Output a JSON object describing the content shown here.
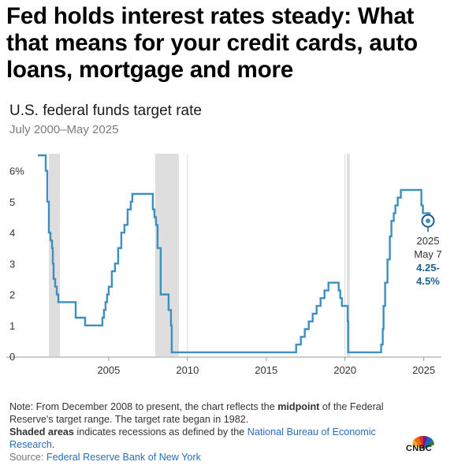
{
  "article": {
    "headline": "Fed holds interest rates steady: What that means for your credit cards, auto loans, mortgage and more"
  },
  "chart_data": {
    "type": "line",
    "title": "U.S. federal funds target rate",
    "subtitle": "July 2000–May 2025",
    "xlabel": "",
    "ylabel": "",
    "xlim": [
      2000.5,
      2025.37
    ],
    "ylim": [
      0,
      6.5
    ],
    "y_ticks": [
      "6%",
      "5",
      "4",
      "3",
      "2",
      "1",
      "0"
    ],
    "x_ticks": [
      "2005",
      "2010",
      "2015",
      "2020",
      "2025"
    ],
    "grid": "vertical lines at 2010 and 2020",
    "line_color": "#3d8fc0",
    "recessions": [
      [
        2001.2,
        2001.9
      ],
      [
        2007.95,
        2009.45
      ],
      [
        2020.12,
        2020.3
      ]
    ],
    "recession_color": "#dedede",
    "series": [
      {
        "x": [
          2000.5,
          2001.0,
          2001.1,
          2001.2,
          2001.3,
          2001.4,
          2001.45,
          2001.5,
          2001.6,
          2001.7,
          2001.8,
          2001.9,
          2002.9,
          2003.5,
          2004.5,
          2004.6,
          2004.7,
          2004.8,
          2004.9,
          2005.0,
          2005.2,
          2005.4,
          2005.6,
          2005.8,
          2006.0,
          2006.2,
          2006.4,
          2006.5,
          2007.7,
          2007.8,
          2007.9,
          2008.0,
          2008.1,
          2008.3,
          2008.75,
          2008.8,
          2008.95,
          2009.0,
          2015.95,
          2016.9,
          2017.2,
          2017.45,
          2017.7,
          2017.95,
          2018.2,
          2018.45,
          2018.7,
          2018.95,
          2019.5,
          2019.6,
          2019.7,
          2019.8,
          2020.17,
          2020.2,
          2022.2,
          2022.3,
          2022.4,
          2022.45,
          2022.55,
          2022.7,
          2022.85,
          2022.95,
          2023.1,
          2023.2,
          2023.35,
          2023.55,
          2024.7,
          2024.85,
          2024.95,
          2025.37
        ],
        "y": [
          6.5,
          6.0,
          5.0,
          4.0,
          3.75,
          3.5,
          3.0,
          2.5,
          2.25,
          2.0,
          1.75,
          1.75,
          1.25,
          1.0,
          1.0,
          1.25,
          1.5,
          1.75,
          2.0,
          2.25,
          2.75,
          3.0,
          3.5,
          4.0,
          4.25,
          4.75,
          5.0,
          5.25,
          5.25,
          4.75,
          4.5,
          4.25,
          3.5,
          2.0,
          2.0,
          1.5,
          1.0,
          0.13,
          0.13,
          0.38,
          0.63,
          0.88,
          1.13,
          1.38,
          1.63,
          1.88,
          2.13,
          2.38,
          2.38,
          2.13,
          1.88,
          1.63,
          1.13,
          0.13,
          0.13,
          0.38,
          0.88,
          1.63,
          2.38,
          3.13,
          3.88,
          4.38,
          4.63,
          4.88,
          5.13,
          5.38,
          5.38,
          4.88,
          4.63,
          4.38
        ]
      }
    ],
    "annotation": {
      "x": 2025.37,
      "y": 4.38,
      "date": "2025",
      "day": "May 7",
      "value_line1": "4.25-",
      "value_line2": "4.5%"
    }
  },
  "footer": {
    "note_prefix": "Note: From December 2008 to present, the chart reflects the ",
    "note_bold": "midpoint",
    "note_suffix": " of the Federal Reserve's target range. The target rate began in 1982.",
    "shaded_bold": "Shaded areas",
    "shaded_text": " indicates recessions as defined by the ",
    "shaded_link": "National Bureau of Economic Research",
    "shaded_end": ".",
    "source_label": "Source: ",
    "source_link": "Federal Reserve Bank of New York"
  },
  "brand": {
    "logo_text": "CNBC",
    "logo_icon": "peacock-icon"
  }
}
